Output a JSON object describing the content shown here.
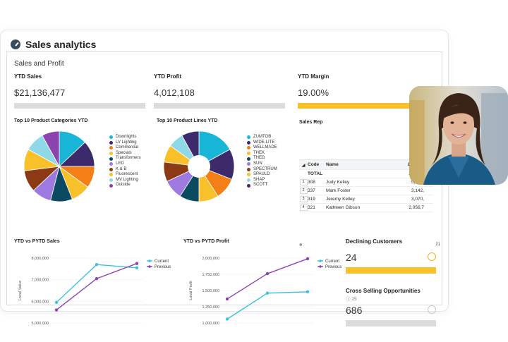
{
  "app": {
    "title": "Sales analytics",
    "icon": "gauge-icon"
  },
  "panel": {
    "title": "Sales and Profit"
  },
  "kpis": [
    {
      "label": "YTD Sales",
      "value": "$21,136,477"
    },
    {
      "label": "YTD Profit",
      "value": "4,012,108"
    },
    {
      "label": "YTD Margin",
      "value": "19.00%"
    }
  ],
  "sections": {
    "categories": "Top 10 Product Categories YTD",
    "lines": "Top 10 Product Lines YTD",
    "sales_rep": "Sales Rep",
    "sales_chart": "YTD vs PYTD Sales",
    "profit_chart": "YTD vs PYTD Profit"
  },
  "colors": {
    "cyan": "#17b6d6",
    "dark_purple": "#3d2a6b",
    "orange": "#f57f17",
    "yellow": "#f8c12a",
    "teal": "#0b4a60",
    "brown": "#8b3a14",
    "lavender": "#9e79e0",
    "light_blue": "#8fd8e8",
    "magenta": "#a03a9a",
    "light_purple": "#c9a6e8",
    "current": "#3cc2df",
    "previous": "#8c43b0",
    "kpi_bar": "#dcdcdc",
    "accent_bar": "#f8c12a"
  },
  "chart_data": [
    {
      "type": "pie",
      "title": "Top 10 Product Categories YTD",
      "labels": [
        "Downlights",
        "LV Lighting",
        "Commercial",
        "Specials",
        "Transformers",
        "LED",
        "K & B",
        "Fluorescent",
        "MV Lighting",
        "Outside"
      ],
      "values": [
        13,
        12,
        10,
        9,
        10,
        9,
        10,
        10,
        9,
        8
      ],
      "colors": [
        "#17b6d6",
        "#3d2a6b",
        "#f57f17",
        "#f8c12a",
        "#0b4a60",
        "#9e79e0",
        "#8b3a14",
        "#f8c12a",
        "#8fd8e8",
        "#8c43b0"
      ]
    },
    {
      "type": "pie",
      "title": "Top 10 Product Lines YTD",
      "labels": [
        "ZUMTOB",
        "WIDE-LITE",
        "WELLMADE",
        "THEK",
        "THEG",
        "SUN",
        "SPECTRUM",
        "SPAULD",
        "SHAP",
        "SCOTT"
      ],
      "values": [
        17,
        14,
        10,
        9,
        9,
        9,
        9,
        8,
        7,
        8
      ],
      "colors": [
        "#17b6d6",
        "#3d2a6b",
        "#f57f17",
        "#f8c12a",
        "#0b4a60",
        "#9e79e0",
        "#8b3a14",
        "#f8c12a",
        "#8fd8e8",
        "#3d2a6b"
      ]
    },
    {
      "type": "line",
      "title": "YTD vs PYTD Sales",
      "ylabel": "Local Value",
      "yticks": [
        "8,000,000",
        "7,000,000",
        "6,000,000",
        "5,000,000"
      ],
      "ylim": [
        5000000,
        8000000
      ],
      "series": [
        {
          "name": "Current",
          "values": [
            5950000,
            7700000,
            7550000
          ]
        },
        {
          "name": "Previous",
          "values": [
            5600000,
            7050000,
            7750000
          ]
        }
      ]
    },
    {
      "type": "line",
      "title": "YTD vs PYTD Profit",
      "ylabel": "Local Profit",
      "yticks": [
        "2,000,000",
        "1,750,000",
        "1,500,000",
        "1,250,000",
        "1,000,000"
      ],
      "ylim": [
        1000000,
        2000000
      ],
      "series": [
        {
          "name": "Current",
          "values": [
            1060000,
            1460000,
            1480000
          ]
        },
        {
          "name": "Previous",
          "values": [
            1370000,
            1760000,
            1990000
          ]
        }
      ]
    }
  ],
  "sales_rep": {
    "columns": [
      "Code",
      "Name",
      "Local V"
    ],
    "total": {
      "label": "TOTAL",
      "value": "23,479,"
    },
    "rows": [
      {
        "num": "1",
        "code": "308",
        "name": "Judy Kelley",
        "value": "5,037,"
      },
      {
        "num": "2",
        "code": "337",
        "name": "Mark Foster",
        "value": "3,142,"
      },
      {
        "num": "3",
        "code": "319",
        "name": "Jeremy Kelley",
        "value": "3,070,"
      },
      {
        "num": "4",
        "code": "321",
        "name": "Kathleen Gibson",
        "value": "2,056,7"
      }
    ],
    "footer_count": "21"
  },
  "declining": {
    "title": "Declining Customers",
    "value": "24",
    "icon": "smile-icon"
  },
  "cross_selling": {
    "title": "Cross Selling Opportunities",
    "sub": "25",
    "value": "686",
    "icon": "neutral-face-icon"
  }
}
